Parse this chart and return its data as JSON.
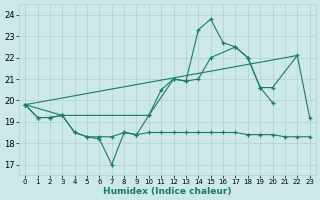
{
  "bg_color": "#cde8e8",
  "line_color": "#1a7a6a",
  "grid_color": "#b0d0d0",
  "xlabel": "Humidex (Indice chaleur)",
  "xlim": [
    -0.5,
    23.5
  ],
  "ylim": [
    16.5,
    24.5
  ],
  "yticks": [
    17,
    18,
    19,
    20,
    21,
    22,
    23,
    24
  ],
  "xticks": [
    0,
    1,
    2,
    3,
    4,
    5,
    6,
    7,
    8,
    9,
    10,
    11,
    12,
    13,
    14,
    15,
    16,
    17,
    18,
    19,
    20,
    21,
    22,
    23
  ],
  "line1_x": [
    0,
    1,
    2,
    3,
    4,
    5,
    6,
    7,
    8,
    9,
    10,
    11,
    12,
    13,
    14,
    15,
    16,
    17,
    18,
    19,
    20
  ],
  "line1_y": [
    19.8,
    19.2,
    19.2,
    19.3,
    18.5,
    18.3,
    18.2,
    17.0,
    18.5,
    18.4,
    19.3,
    20.5,
    21.0,
    20.9,
    23.3,
    23.8,
    22.7,
    22.5,
    22.0,
    20.6,
    19.9
  ],
  "line2_x": [
    0,
    22
  ],
  "line2_y": [
    19.8,
    22.1
  ],
  "line3_x": [
    0,
    3,
    10,
    12,
    13,
    14,
    15,
    17,
    18,
    19,
    20,
    22,
    23
  ],
  "line3_y": [
    19.8,
    19.3,
    19.3,
    21.0,
    20.9,
    21.0,
    22.0,
    22.5,
    22.0,
    20.6,
    20.6,
    22.1,
    19.2
  ],
  "line4_x": [
    0,
    1,
    2,
    3,
    4,
    5,
    6,
    7,
    8,
    9,
    10,
    11,
    12,
    13,
    14,
    15,
    16,
    17,
    18,
    19,
    20,
    21,
    22,
    23
  ],
  "line4_y": [
    19.8,
    19.2,
    19.2,
    19.3,
    18.5,
    18.3,
    18.3,
    18.3,
    18.5,
    18.4,
    18.5,
    18.5,
    18.5,
    18.5,
    18.5,
    18.5,
    18.5,
    18.5,
    18.4,
    18.4,
    18.4,
    18.3,
    18.3,
    18.3
  ]
}
